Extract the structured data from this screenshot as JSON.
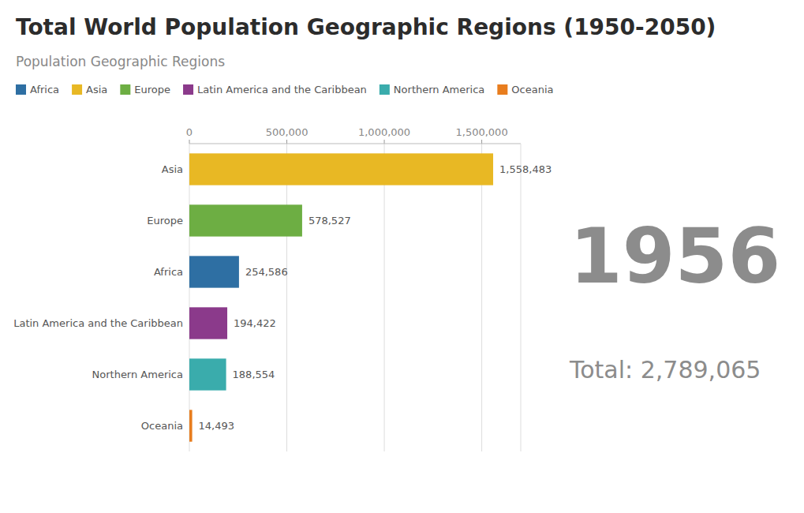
{
  "chart_data": {
    "type": "bar",
    "orientation": "horizontal",
    "stacked": true,
    "title": "Total World Population Geographic Regions (1950-2050)",
    "subtitle": "Population Geographic Regions",
    "categories": [
      "Asia",
      "Europe",
      "Africa",
      "Latin America and the Caribbean",
      "Northern America",
      "Oceania"
    ],
    "series": [
      {
        "name": "Africa",
        "color": "#2E6FA3",
        "values": [
          null,
          null,
          254586,
          null,
          null,
          null
        ],
        "value_labels": [
          null,
          null,
          "254,586",
          null,
          null,
          null
        ]
      },
      {
        "name": "Asia",
        "color": "#E8B824",
        "values": [
          1558483,
          null,
          null,
          null,
          null,
          null
        ],
        "value_labels": [
          "1,558,483",
          null,
          null,
          null,
          null,
          null
        ]
      },
      {
        "name": "Europe",
        "color": "#6DAE43",
        "values": [
          null,
          578527,
          null,
          null,
          null,
          null
        ],
        "value_labels": [
          null,
          "578,527",
          null,
          null,
          null,
          null
        ]
      },
      {
        "name": "Latin America and the Caribbean",
        "color": "#8B3A8B",
        "values": [
          null,
          null,
          null,
          194422,
          null,
          null
        ],
        "value_labels": [
          null,
          null,
          null,
          "194,422",
          null,
          null
        ]
      },
      {
        "name": "Northern America",
        "color": "#3AACAC",
        "values": [
          null,
          null,
          null,
          null,
          188554,
          null
        ],
        "value_labels": [
          null,
          null,
          null,
          null,
          "188,554",
          null
        ]
      },
      {
        "name": "Oceania",
        "color": "#E87D1E",
        "values": [
          null,
          null,
          null,
          null,
          null,
          14493
        ],
        "value_labels": [
          null,
          null,
          null,
          null,
          null,
          "14,493"
        ]
      }
    ],
    "xlim": [
      0,
      1700000
    ],
    "xticks": [
      0,
      {
        "value": 500000,
        "label": "500,000"
      },
      {
        "value": 1000000,
        "label": "1,000,000"
      },
      {
        "value": 1500000,
        "label": "1,500,000"
      }
    ],
    "grid": true,
    "data_labels": true,
    "annotations": [
      "1956",
      "Total: 2,789,065"
    ]
  }
}
